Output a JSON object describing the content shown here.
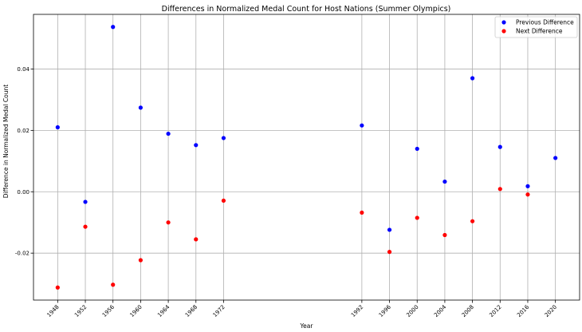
{
  "chart_data": {
    "type": "scatter",
    "title": "Differences in Normalized Medal Count for Host Nations (Summer Olympics)",
    "xlabel": "Year",
    "ylabel": "Difference in Normalized Medal Count",
    "x_ticks": [
      1948,
      1952,
      1956,
      1960,
      1964,
      1968,
      1972,
      1992,
      1996,
      2000,
      2004,
      2008,
      2012,
      2016,
      2020
    ],
    "y_ticks": [
      -0.02,
      0.0,
      0.02,
      0.04
    ],
    "y_tick_labels": [
      "-0.02",
      "0.00",
      "0.02",
      "0.04"
    ],
    "xlim": [
      1944.5,
      2023.5
    ],
    "ylim": [
      -0.0353,
      0.0578
    ],
    "grid": true,
    "legend_position": "top-right",
    "series": [
      {
        "name": "Previous Difference",
        "color": "#0000ff",
        "x": [
          1948,
          1952,
          1956,
          1960,
          1964,
          1968,
          1972,
          1992,
          1996,
          2000,
          2004,
          2008,
          2012,
          2016,
          2020
        ],
        "y": [
          0.021,
          -0.0033,
          0.0537,
          0.0274,
          0.0189,
          0.0152,
          0.0175,
          0.0216,
          -0.0124,
          0.014,
          0.0033,
          0.037,
          0.0146,
          0.0018,
          0.011
        ]
      },
      {
        "name": "Next Difference",
        "color": "#ff0000",
        "x": [
          1948,
          1952,
          1956,
          1960,
          1964,
          1968,
          1972,
          1992,
          1996,
          2000,
          2004,
          2008,
          2012,
          2016
        ],
        "y": [
          -0.0312,
          -0.0114,
          -0.0303,
          -0.0223,
          -0.01,
          -0.0155,
          -0.0029,
          -0.0068,
          -0.0196,
          -0.0085,
          -0.0141,
          -0.0096,
          0.0009,
          -0.0009
        ]
      }
    ]
  }
}
